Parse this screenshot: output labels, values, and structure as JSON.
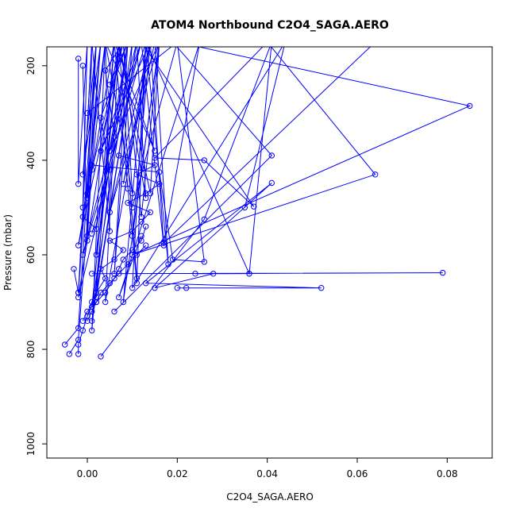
{
  "chart_data": {
    "type": "line",
    "title": "ATOM4 Northbound C2O4_SAGA.AERO",
    "xlabel": "C2O4_SAGA.AERO",
    "ylabel": "Pressure (mbar)",
    "xlim": [
      -0.009,
      0.09
    ],
    "ylim": [
      1030,
      160
    ],
    "y_reversed": true,
    "x_ticks": [
      0.0,
      0.02,
      0.04,
      0.06,
      0.08
    ],
    "x_tick_labels": [
      "0.00",
      "0.02",
      "0.04",
      "0.06",
      "0.08"
    ],
    "y_ticks": [
      200,
      400,
      600,
      800,
      1000
    ],
    "y_tick_labels": [
      "200",
      "400",
      "600",
      "800",
      "1000"
    ],
    "grid": false,
    "legend": "none",
    "series_color": "#0000ff",
    "series": [
      {
        "x": [
          -0.005,
          -0.002,
          0.002,
          -0.001,
          0.003,
          0.0,
          -0.002,
          0.008,
          0.001,
          0.004,
          -0.001,
          0.002,
          0.009,
          0.006,
          0.01,
          0.001,
          0.007,
          -0.002,
          0.012,
          0.003,
          0.014,
          0.005,
          0.016,
          0.008,
          0.013,
          -0.001,
          0.011,
          0.002,
          0.006,
          0.015,
          0.004,
          0.001,
          0.007
        ],
        "y": [
          790,
          755,
          150,
          430,
          150,
          470,
          580,
          150,
          420,
          150,
          520,
          545,
          150,
          640,
          150,
          710,
          150,
          690,
          150,
          380,
          150,
          510,
          150,
          700,
          150,
          600,
          150,
          690,
          150,
          380,
          150,
          760,
          150
        ]
      },
      {
        "x": [
          -0.004,
          -0.002,
          0.003,
          0.0,
          0.006,
          0.002,
          0.009,
          0.001,
          0.011,
          0.013,
          0.007,
          0.004,
          0.014,
          0.01,
          0.016,
          0.005,
          0.012,
          0.017,
          0.014,
          0.008,
          0.015,
          0.018,
          0.013,
          0.011,
          0.006,
          0.009
        ],
        "y": [
          810,
          780,
          150,
          480,
          150,
          600,
          150,
          740,
          150,
          480,
          150,
          700,
          150,
          560,
          150,
          380,
          150,
          580,
          150,
          450,
          150,
          620,
          150,
          660,
          150,
          460
        ]
      },
      {
        "x": [
          -0.002,
          -0.002,
          -0.001,
          0.0,
          0.001,
          0.002,
          0.004,
          0.003,
          0.006,
          0.008,
          0.005,
          0.01,
          0.012,
          0.014,
          0.009,
          0.013,
          0.016,
          0.011,
          0.015,
          0.007
        ],
        "y": [
          810,
          790,
          760,
          730,
          700,
          680,
          650,
          630,
          610,
          590,
          570,
          550,
          530,
          510,
          490,
          470,
          450,
          430,
          410,
          390
        ]
      },
      {
        "x": [
          -0.003,
          -0.002,
          0.001,
          0.005,
          0.004,
          0.01,
          0.008,
          0.012,
          0.016,
          0.014,
          0.007,
          0.011
        ],
        "y": [
          630,
          680,
          150,
          550,
          150,
          470,
          150,
          520,
          150,
          470,
          150,
          650
        ]
      },
      {
        "x": [
          -0.002,
          -0.002,
          0.0,
          -0.001,
          0.001,
          0.0,
          0.002,
          -0.002
        ],
        "y": [
          185,
          450,
          150,
          500,
          150,
          560,
          150,
          680
        ]
      },
      {
        "x": [
          0.003,
          0.026,
          0.041,
          0.036,
          0.013,
          0.01,
          0.044,
          0.035
        ],
        "y": [
          815,
          525,
          150,
          640,
          150,
          670,
          150,
          500
        ]
      },
      {
        "x": [
          0.0,
          0.02,
          0.085,
          0.01,
          0.064,
          0.04,
          0.015,
          0.026,
          0.037,
          0.012
        ],
        "y": [
          300,
          150,
          285,
          600,
          430,
          150,
          395,
          400,
          498,
          150
        ]
      },
      {
        "x": [
          0.001,
          0.079,
          0.024,
          0.036,
          0.028,
          0.015,
          0.041,
          0.013,
          0.052,
          0.022,
          0.02
        ],
        "y": [
          640,
          638,
          640,
          640,
          640,
          670,
          448,
          660,
          670,
          670,
          670
        ]
      },
      {
        "x": [
          0.006,
          0.041,
          0.019,
          0.064,
          0.017,
          0.025,
          0.007,
          0.012
        ],
        "y": [
          720,
          390,
          150,
          150,
          575,
          150,
          690,
          560
        ]
      },
      {
        "x": [
          -0.001,
          0.0,
          0.001,
          0.016,
          0.019,
          0.026,
          0.02,
          0.01
        ],
        "y": [
          200,
          570,
          410,
          425,
          610,
          615,
          150,
          500
        ]
      },
      {
        "x": [
          0.001,
          0.005,
          0.003,
          0.009,
          0.005,
          0.008,
          0.004,
          0.006
        ],
        "y": [
          555,
          420,
          310,
          150,
          240,
          150,
          210,
          350
        ]
      },
      {
        "x": [
          0.0,
          0.001,
          0.002,
          0.003,
          0.005,
          0.007,
          0.009,
          0.011,
          0.013
        ],
        "y": [
          740,
          720,
          700,
          680,
          660,
          640,
          620,
          600,
          580
        ]
      },
      {
        "x": [
          -0.001,
          0.0,
          0.002,
          0.004,
          0.006,
          0.007,
          0.008,
          0.01,
          0.012,
          0.013
        ],
        "y": [
          740,
          720,
          700,
          680,
          650,
          630,
          610,
          590,
          570,
          540
        ]
      }
    ]
  }
}
